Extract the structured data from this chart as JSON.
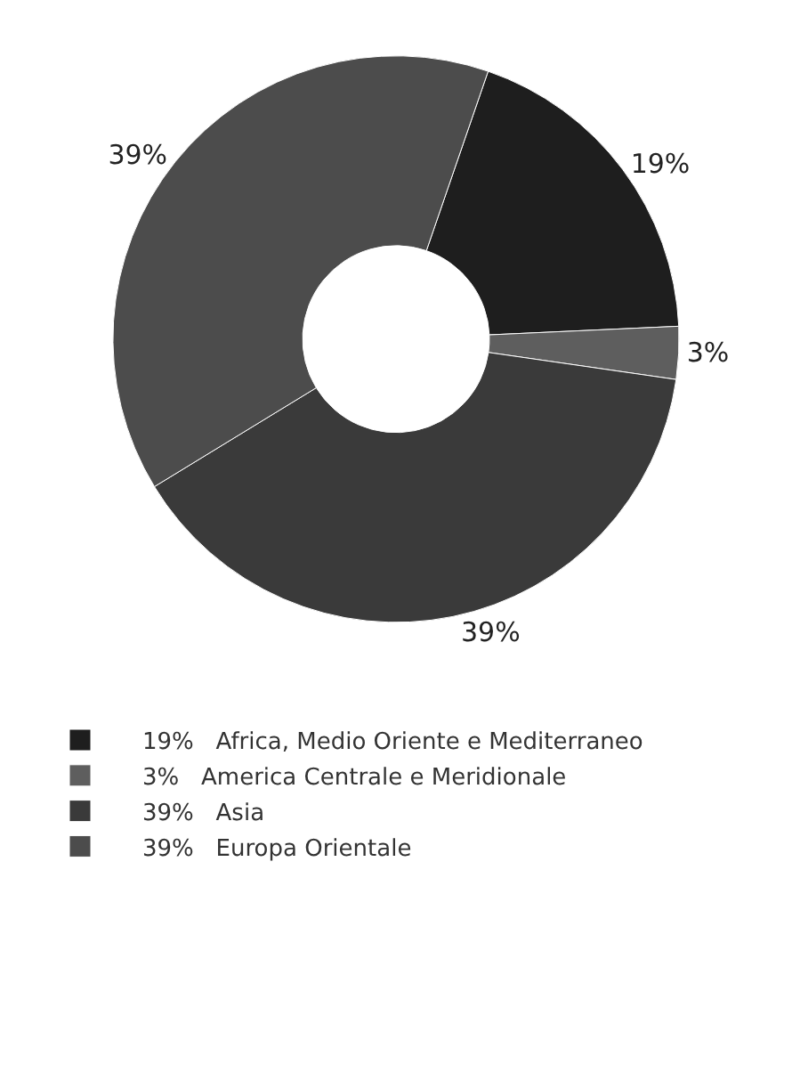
{
  "chart_data": {
    "type": "donut",
    "categories": [
      "Africa, Medio Oriente e Mediterraneo",
      "America Centrale e Meridionale",
      "Asia",
      "Europa Orientale"
    ],
    "values": [
      19,
      3,
      39,
      39
    ],
    "value_labels": [
      "19%",
      "3%",
      "39%",
      "39%"
    ],
    "colors": [
      "#1e1e1e",
      "#5e5e5e",
      "#3a3a3a",
      "#4c4c4c"
    ],
    "legend": "bottom"
  }
}
